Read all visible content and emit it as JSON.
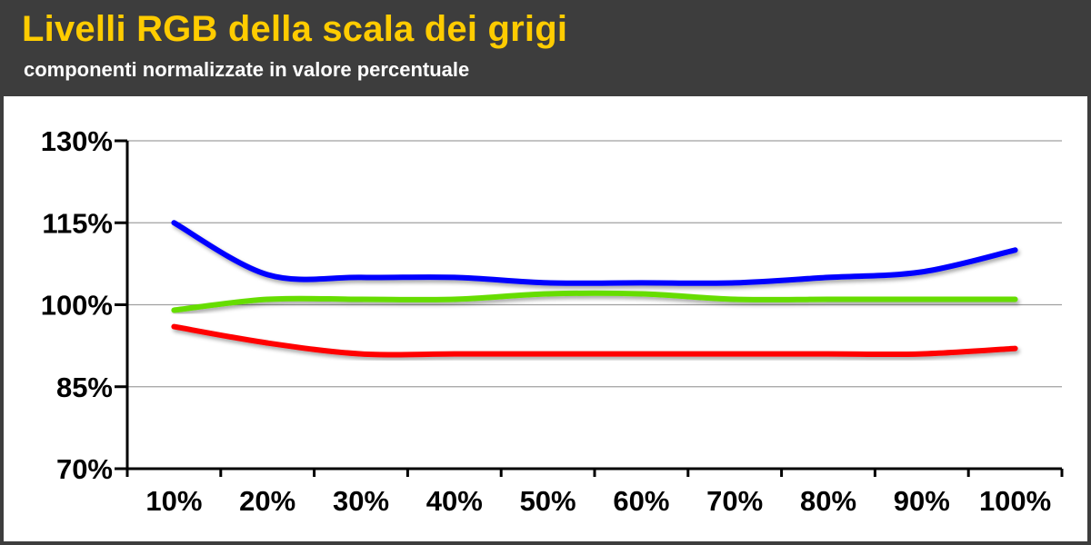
{
  "header": {
    "title": "Livelli RGB della scala dei grigi",
    "subtitle": "componenti normalizzate in valore percentuale"
  },
  "colors": {
    "background": "#3d3d3d",
    "title": "#ffcc00",
    "subtitle": "#ffffff",
    "plot_background": "#ffffff",
    "grid": "#a0a0a0"
  },
  "chart_data": {
    "type": "line",
    "title": "Livelli RGB della scala dei grigi",
    "subtitle": "componenti normalizzate in valore percentuale",
    "xlabel": "",
    "ylabel": "",
    "categories": [
      "10%",
      "20%",
      "30%",
      "40%",
      "50%",
      "60%",
      "70%",
      "80%",
      "90%",
      "100%"
    ],
    "y_ticks": [
      70,
      85,
      100,
      115,
      130
    ],
    "y_tick_labels": [
      "70%",
      "85%",
      "100%",
      "115%",
      "130%"
    ],
    "ylim": [
      70,
      130
    ],
    "grid": true,
    "legend": "none",
    "series": [
      {
        "color": "#0000ff",
        "values": [
          115,
          105.5,
          105,
          105,
          104,
          104,
          104,
          105,
          106,
          110
        ]
      },
      {
        "color": "#66dd00",
        "values": [
          99,
          101,
          101,
          101,
          102,
          102,
          101,
          101,
          101,
          101
        ]
      },
      {
        "color": "#ff0000",
        "values": [
          96,
          93,
          91,
          91,
          91,
          91,
          91,
          91,
          91,
          92
        ]
      }
    ]
  }
}
